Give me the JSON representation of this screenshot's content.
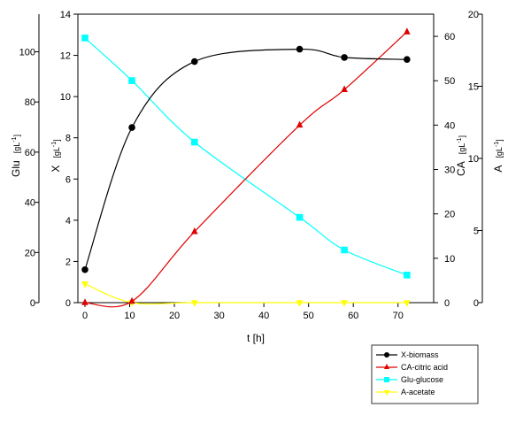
{
  "chart_data": {
    "type": "line",
    "x": {
      "label": "t [h]",
      "range": [
        0,
        75
      ],
      "ticks": [
        0,
        10,
        20,
        30,
        40,
        50,
        60,
        70
      ]
    },
    "axes": {
      "X": {
        "label": "X",
        "unit": "[gL",
        "exp": "-1",
        "unit_close": "]",
        "range": [
          0,
          14
        ],
        "ticks": [
          0,
          2,
          4,
          6,
          8,
          10,
          12,
          14
        ]
      },
      "Glu": {
        "label": "Glu",
        "unit": "[gL",
        "exp": "-1",
        "unit_close": "]",
        "range": [
          0,
          115
        ],
        "ticks": [
          0,
          20,
          40,
          60,
          80,
          100
        ]
      },
      "CA": {
        "label": "CA",
        "unit": "[gL",
        "exp": "-1",
        "unit_close": "]",
        "range": [
          0,
          65
        ],
        "ticks": [
          0,
          10,
          20,
          30,
          40,
          50,
          60
        ]
      },
      "A": {
        "label": "A",
        "unit": "[gL",
        "exp": "-1",
        "unit_close": "]",
        "range": [
          0,
          20
        ],
        "ticks": [
          0,
          5,
          10,
          15,
          20
        ]
      }
    },
    "series": [
      {
        "name": "X-biomass",
        "axis": "X",
        "color": "#000000",
        "marker": "circle",
        "x": [
          0,
          10.5,
          24.5,
          48,
          58,
          72
        ],
        "y": [
          1.6,
          8.5,
          11.7,
          12.3,
          11.9,
          11.8
        ]
      },
      {
        "name": "CA-citric acid",
        "axis": "CA",
        "color": "#e00000",
        "marker": "triangle-up",
        "x": [
          0,
          10.5,
          24.5,
          48,
          58,
          72
        ],
        "y": [
          0,
          0.3,
          16,
          40,
          48,
          61
        ]
      },
      {
        "name": "Glu-glucose",
        "axis": "Glu",
        "color": "#00ffff",
        "marker": "square",
        "x": [
          0,
          10.5,
          24.5,
          48,
          58,
          72
        ],
        "y": [
          105.5,
          88.5,
          64,
          34,
          21,
          11
        ]
      },
      {
        "name": "A-acetate",
        "axis": "A",
        "color": "#ffff00",
        "marker": "triangle-down",
        "x": [
          0,
          10.5,
          24.5,
          48,
          58,
          72
        ],
        "y": [
          1.3,
          0,
          0,
          0,
          0,
          0
        ]
      }
    ],
    "legend_position": "bottom-right",
    "grid": false
  }
}
